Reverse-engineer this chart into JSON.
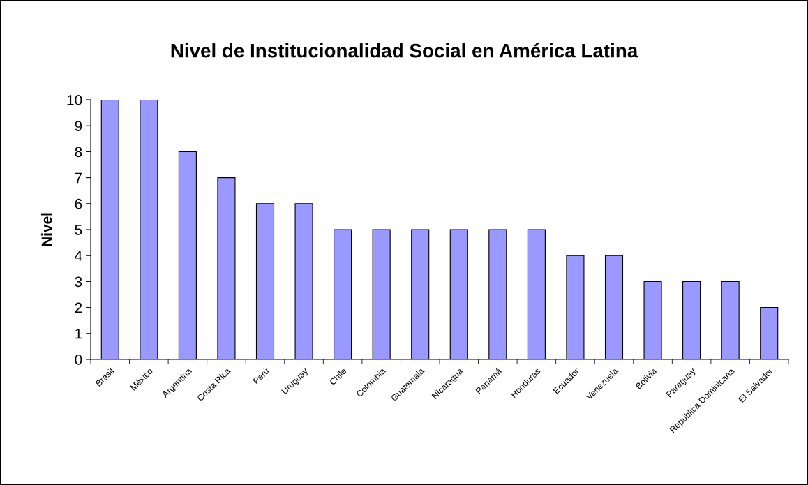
{
  "chart_data": {
    "type": "bar",
    "title": "Nivel de Institucionalidad Social en América Latina",
    "ylabel": "Nivel",
    "categories": [
      "Brasil",
      "México",
      "Argentina",
      "Costa Rica",
      "Perú",
      "Uruguay",
      "Chile",
      "Colombia",
      "Guatemala",
      "Nicaragua",
      "Panamá",
      "Honduras",
      "Ecuador",
      "Venezuela",
      "Bolivia",
      "Paraguay",
      "República Dominicana",
      "El Salvador"
    ],
    "values": [
      10,
      10,
      8,
      7,
      6,
      6,
      5,
      5,
      5,
      5,
      5,
      5,
      4,
      4,
      3,
      3,
      3,
      2
    ],
    "color": "#9999ff",
    "ylim": [
      0,
      10
    ],
    "yticks": [
      0,
      1,
      2,
      3,
      4,
      5,
      6,
      7,
      8,
      9,
      10
    ],
    "grid": false,
    "legend": false
  }
}
